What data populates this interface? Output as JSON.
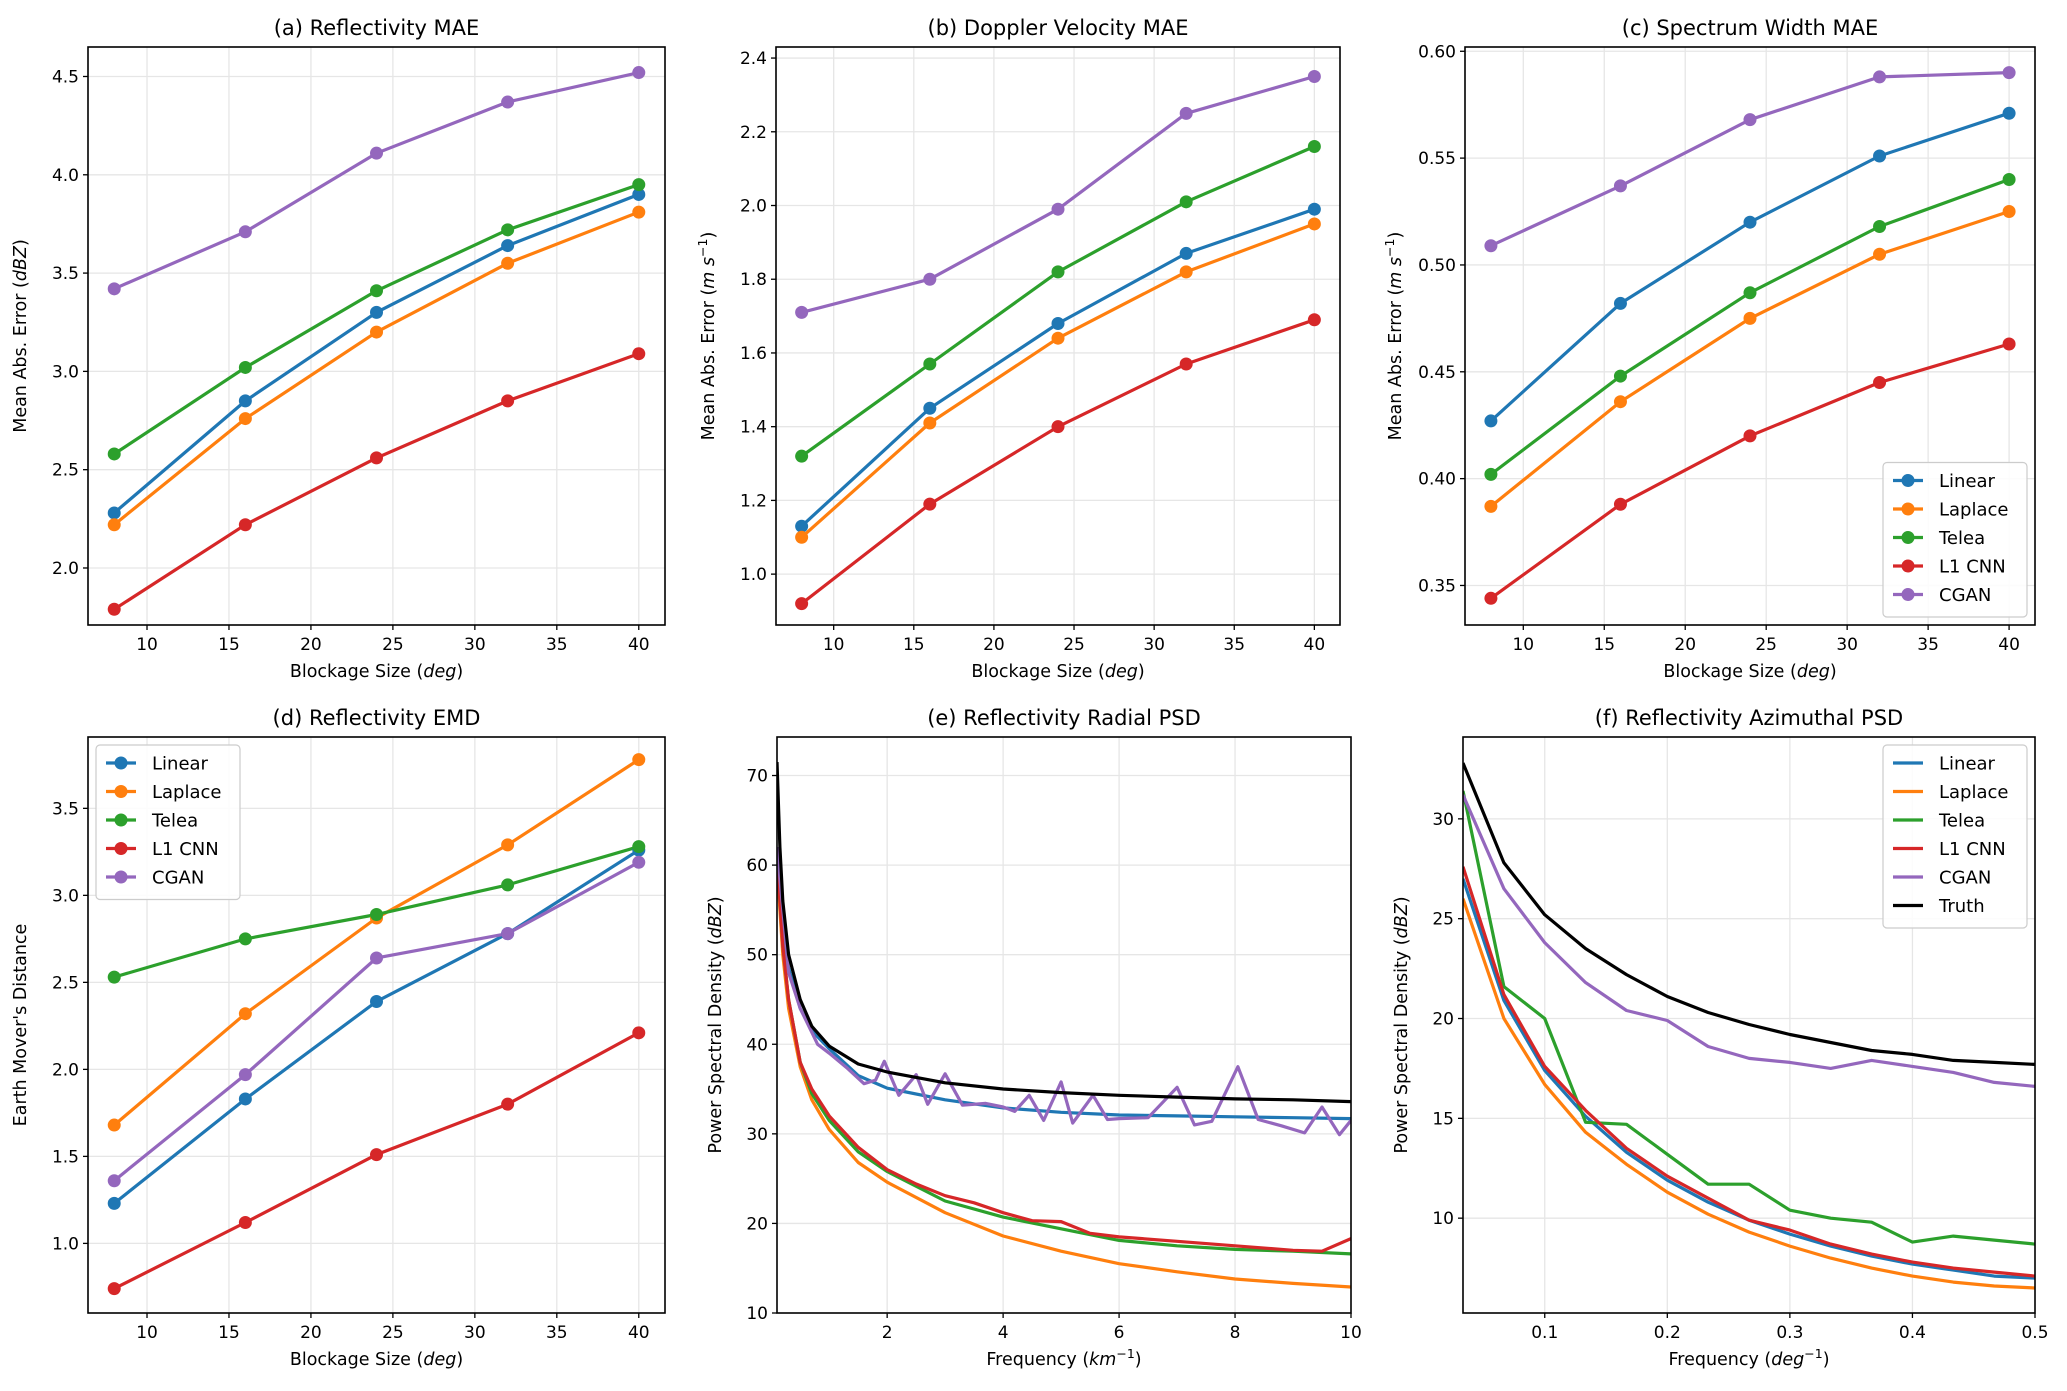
{
  "colors": {
    "Linear": "#1f77b4",
    "Laplace": "#ff7f0e",
    "Telea": "#2ca02c",
    "L1 CNN": "#d62728",
    "CGAN": "#9467bd",
    "Truth": "#000000"
  },
  "chart_data": [
    {
      "id": "a",
      "type": "line",
      "title": "(a) Reflectivity MAE",
      "xlabel": "Blockage Size (deg)",
      "xlabel_parts": [
        "Blockage Size (",
        "deg",
        ")"
      ],
      "ylabel": "Mean Abs. Error (dBZ)",
      "ylabel_parts": [
        "Mean Abs. Error (",
        "dBZ",
        ")"
      ],
      "x": [
        8,
        16,
        24,
        32,
        40
      ],
      "xlim": [
        6.4,
        41.6
      ],
      "ylim": [
        1.71,
        4.65
      ],
      "xticks": [
        10,
        15,
        20,
        25,
        30,
        35,
        40
      ],
      "yticks": [
        2.0,
        2.5,
        3.0,
        3.5,
        4.0,
        4.5
      ],
      "ytick_labels": [
        "2.0",
        "2.5",
        "3.0",
        "3.5",
        "4.0",
        "4.5"
      ],
      "markers": true,
      "grid": true,
      "legend": null,
      "series": [
        {
          "name": "Linear",
          "values": [
            2.28,
            2.85,
            3.3,
            3.64,
            3.9
          ]
        },
        {
          "name": "Laplace",
          "values": [
            2.22,
            2.76,
            3.2,
            3.55,
            3.81
          ]
        },
        {
          "name": "Telea",
          "values": [
            2.58,
            3.02,
            3.41,
            3.72,
            3.95
          ]
        },
        {
          "name": "L1 CNN",
          "values": [
            1.79,
            2.22,
            2.56,
            2.85,
            3.09
          ]
        },
        {
          "name": "CGAN",
          "values": [
            3.42,
            3.71,
            4.11,
            4.37,
            4.52
          ]
        }
      ]
    },
    {
      "id": "b",
      "type": "line",
      "title": "(b) Doppler Velocity MAE",
      "xlabel": "Blockage Size (deg)",
      "xlabel_parts": [
        "Blockage Size (",
        "deg",
        ")"
      ],
      "ylabel": "Mean Abs. Error (m s^-1)",
      "ylabel_parts": [
        "Mean Abs. Error (",
        "m s",
        "−1",
        ")"
      ],
      "x": [
        8,
        16,
        24,
        32,
        40
      ],
      "xlim": [
        6.4,
        41.6
      ],
      "ylim": [
        0.862,
        2.43
      ],
      "xticks": [
        10,
        15,
        20,
        25,
        30,
        35,
        40
      ],
      "yticks": [
        1.0,
        1.2,
        1.4,
        1.6,
        1.8,
        2.0,
        2.2,
        2.4
      ],
      "ytick_labels": [
        "1.0",
        "1.2",
        "1.4",
        "1.6",
        "1.8",
        "2.0",
        "2.2",
        "2.4"
      ],
      "markers": true,
      "grid": true,
      "legend": null,
      "series": [
        {
          "name": "Linear",
          "values": [
            1.13,
            1.45,
            1.68,
            1.87,
            1.99
          ]
        },
        {
          "name": "Laplace",
          "values": [
            1.1,
            1.41,
            1.64,
            1.82,
            1.95
          ]
        },
        {
          "name": "Telea",
          "values": [
            1.32,
            1.57,
            1.82,
            2.01,
            2.16
          ]
        },
        {
          "name": "L1 CNN",
          "values": [
            0.92,
            1.19,
            1.4,
            1.57,
            1.69
          ]
        },
        {
          "name": "CGAN",
          "values": [
            1.71,
            1.8,
            1.99,
            2.25,
            2.35
          ]
        }
      ]
    },
    {
      "id": "c",
      "type": "line",
      "title": "(c) Spectrum Width MAE",
      "xlabel": "Blockage Size (deg)",
      "xlabel_parts": [
        "Blockage Size (",
        "deg",
        ")"
      ],
      "ylabel": "Mean Abs. Error (m s^-1)",
      "ylabel_parts": [
        "Mean Abs. Error (",
        "m s",
        "−1",
        ")"
      ],
      "x": [
        8,
        16,
        24,
        32,
        40
      ],
      "xlim": [
        6.4,
        41.6
      ],
      "ylim": [
        0.3315,
        0.602
      ],
      "xticks": [
        10,
        15,
        20,
        25,
        30,
        35,
        40
      ],
      "yticks": [
        0.35,
        0.4,
        0.45,
        0.5,
        0.55,
        0.6
      ],
      "ytick_labels": [
        "0.35",
        "0.40",
        "0.45",
        "0.50",
        "0.55",
        "0.60"
      ],
      "markers": true,
      "grid": true,
      "legend": "lower-right",
      "series": [
        {
          "name": "Linear",
          "values": [
            0.427,
            0.482,
            0.52,
            0.551,
            0.571
          ]
        },
        {
          "name": "Laplace",
          "values": [
            0.387,
            0.436,
            0.475,
            0.505,
            0.525
          ]
        },
        {
          "name": "Telea",
          "values": [
            0.402,
            0.448,
            0.487,
            0.518,
            0.54
          ]
        },
        {
          "name": "L1 CNN",
          "values": [
            0.344,
            0.388,
            0.42,
            0.445,
            0.463
          ]
        },
        {
          "name": "CGAN",
          "values": [
            0.509,
            0.537,
            0.568,
            0.588,
            0.59
          ]
        }
      ]
    },
    {
      "id": "d",
      "type": "line",
      "title": "(d) Reflectivity EMD",
      "xlabel": "Blockage Size (deg)",
      "xlabel_parts": [
        "Blockage Size (",
        "deg",
        ")"
      ],
      "ylabel": "Earth Mover's Distance",
      "ylabel_parts": [
        "Earth Mover's Distance"
      ],
      "x": [
        8,
        16,
        24,
        32,
        40
      ],
      "xlim": [
        6.4,
        41.6
      ],
      "ylim": [
        0.6,
        3.91
      ],
      "xticks": [
        10,
        15,
        20,
        25,
        30,
        35,
        40
      ],
      "yticks": [
        1.0,
        1.5,
        2.0,
        2.5,
        3.0,
        3.5
      ],
      "ytick_labels": [
        "1.0",
        "1.5",
        "2.0",
        "2.5",
        "3.0",
        "3.5"
      ],
      "markers": true,
      "grid": true,
      "legend": "upper-left",
      "series": [
        {
          "name": "Linear",
          "values": [
            1.23,
            1.83,
            2.39,
            2.78,
            3.26
          ]
        },
        {
          "name": "Laplace",
          "values": [
            1.68,
            2.32,
            2.87,
            3.29,
            3.78
          ]
        },
        {
          "name": "Telea",
          "values": [
            2.53,
            2.75,
            2.89,
            3.06,
            3.28
          ]
        },
        {
          "name": "L1 CNN",
          "values": [
            0.74,
            1.12,
            1.51,
            1.8,
            2.21
          ]
        },
        {
          "name": "CGAN",
          "values": [
            1.36,
            1.97,
            2.64,
            2.78,
            3.19
          ]
        }
      ]
    },
    {
      "id": "e",
      "type": "line",
      "title": "(e) Reflectivity Radial PSD",
      "xlabel": "Frequency (km^-1)",
      "xlabel_parts": [
        "Frequency (",
        "km",
        "−1",
        ")"
      ],
      "ylabel": "Power Spectral Density (dBZ)",
      "ylabel_parts": [
        "Power Spectral Density (",
        "dBZ",
        ")"
      ],
      "xlim": [
        0.1,
        10
      ],
      "ylim": [
        10,
        74.3
      ],
      "xticks": [
        2,
        4,
        6,
        8,
        10
      ],
      "yticks": [
        10,
        20,
        30,
        40,
        50,
        60,
        70
      ],
      "ytick_labels": [
        "10",
        "20",
        "30",
        "40",
        "50",
        "60",
        "70"
      ],
      "markers": false,
      "grid": true,
      "legend": null,
      "series": [
        {
          "name": "Linear",
          "x": [
            0.1,
            0.2,
            0.3,
            0.5,
            0.7,
            1.0,
            1.5,
            2,
            3,
            4,
            5,
            6,
            7,
            8,
            9,
            10
          ],
          "values": [
            62,
            53,
            48.5,
            44,
            41.5,
            39.5,
            36.5,
            35.1,
            33.8,
            32.9,
            32.4,
            32.1,
            32.0,
            31.9,
            31.8,
            31.7
          ]
        },
        {
          "name": "Laplace",
          "x": [
            0.1,
            0.2,
            0.3,
            0.5,
            0.7,
            1.0,
            1.5,
            2,
            3,
            4,
            5,
            6,
            7,
            8,
            9,
            10
          ],
          "values": [
            60,
            50,
            44,
            37.5,
            33.8,
            30.5,
            26.8,
            24.6,
            21.2,
            18.6,
            16.9,
            15.5,
            14.6,
            13.8,
            13.3,
            12.9
          ]
        },
        {
          "name": "Telea",
          "x": [
            0.1,
            0.2,
            0.3,
            0.5,
            0.7,
            1.0,
            1.5,
            2,
            3,
            4,
            5,
            6,
            7,
            8,
            9,
            10
          ],
          "values": [
            61,
            51,
            45,
            38,
            34.5,
            31.5,
            28,
            25.8,
            22.5,
            20.7,
            19.4,
            18.1,
            17.5,
            17.1,
            16.9,
            16.6
          ]
        },
        {
          "name": "L1 CNN",
          "x": [
            0.1,
            0.2,
            0.3,
            0.5,
            0.7,
            1.0,
            1.5,
            2,
            2.5,
            3,
            3.5,
            4,
            4.5,
            5,
            5.5,
            6,
            7,
            8,
            9,
            9.5,
            10
          ],
          "values": [
            61,
            51,
            45,
            38,
            35,
            32,
            28.5,
            26,
            24.4,
            23.1,
            22.3,
            21.2,
            20.3,
            20.2,
            18.9,
            18.5,
            18.0,
            17.5,
            17.0,
            16.9,
            18.3
          ]
        },
        {
          "name": "CGAN",
          "x": [
            0.1,
            0.3,
            0.5,
            0.8,
            1.0,
            1.3,
            1.6,
            1.8,
            1.95,
            2.2,
            2.5,
            2.7,
            3.0,
            3.3,
            3.7,
            4.0,
            4.2,
            4.45,
            4.7,
            5.0,
            5.2,
            5.55,
            5.8,
            6.0,
            6.5,
            7.0,
            7.3,
            7.6,
            8.05,
            8.4,
            8.8,
            9.2,
            9.5,
            9.8,
            10
          ],
          "values": [
            62,
            48,
            44,
            40,
            39,
            37.4,
            35.6,
            36.0,
            38.1,
            34.3,
            36.6,
            33.3,
            36.7,
            33.2,
            33.4,
            33.0,
            32.5,
            34.3,
            31.5,
            35.8,
            31.2,
            34.3,
            31.6,
            31.7,
            31.8,
            35.2,
            31.0,
            31.4,
            37.5,
            31.6,
            30.9,
            30.1,
            33.0,
            29.9,
            31.5
          ]
        },
        {
          "name": "Truth",
          "x": [
            0.1,
            0.15,
            0.2,
            0.3,
            0.5,
            0.7,
            1.0,
            1.5,
            2,
            3,
            4,
            5,
            6,
            7,
            8,
            9,
            10
          ],
          "values": [
            71.5,
            62,
            56,
            50,
            45,
            42,
            39.8,
            37.8,
            36.9,
            35.7,
            35.0,
            34.6,
            34.3,
            34.1,
            33.9,
            33.8,
            33.6
          ]
        }
      ]
    },
    {
      "id": "f",
      "type": "line",
      "title": "(f) Reflectivity Azimuthal  PSD",
      "xlabel": "Frequency (deg^-1)",
      "xlabel_parts": [
        "Frequency (",
        "deg",
        "−1",
        ")"
      ],
      "ylabel": "Power Spectral Density (dBZ)",
      "ylabel_parts": [
        "Power Spectral Density (",
        "dBZ",
        ")"
      ],
      "xlim": [
        0.0333,
        0.5
      ],
      "ylim": [
        5.25,
        34.1
      ],
      "xticks": [
        0.1,
        0.2,
        0.3,
        0.4,
        0.5
      ],
      "xtick_labels": [
        "0.1",
        "0.2",
        "0.3",
        "0.4",
        "0.5"
      ],
      "yticks": [
        10,
        15,
        20,
        25,
        30
      ],
      "ytick_labels": [
        "10",
        "15",
        "20",
        "25",
        "30"
      ],
      "markers": false,
      "grid": true,
      "legend": "upper-right",
      "series": [
        {
          "name": "Linear",
          "x": [
            0.0333,
            0.0667,
            0.1,
            0.1333,
            0.1667,
            0.2,
            0.2333,
            0.2667,
            0.3,
            0.3333,
            0.3667,
            0.4,
            0.4333,
            0.4667,
            0.5
          ],
          "values": [
            27.0,
            20.9,
            17.4,
            15.1,
            13.3,
            11.9,
            10.8,
            9.9,
            9.2,
            8.6,
            8.1,
            7.7,
            7.4,
            7.1,
            7.0
          ]
        },
        {
          "name": "Laplace",
          "x": [
            0.0333,
            0.0667,
            0.1,
            0.1333,
            0.1667,
            0.2,
            0.2333,
            0.2667,
            0.3,
            0.3333,
            0.3667,
            0.4,
            0.4333,
            0.4667,
            0.5
          ],
          "values": [
            26.0,
            20.0,
            16.7,
            14.3,
            12.7,
            11.3,
            10.2,
            9.3,
            8.6,
            8.0,
            7.5,
            7.1,
            6.8,
            6.6,
            6.5
          ]
        },
        {
          "name": "Telea",
          "x": [
            0.0333,
            0.0667,
            0.1,
            0.1333,
            0.1667,
            0.2,
            0.2333,
            0.2667,
            0.3,
            0.3333,
            0.3667,
            0.4,
            0.4333,
            0.4667,
            0.5
          ],
          "values": [
            31.4,
            21.6,
            20.0,
            14.8,
            14.7,
            13.2,
            11.7,
            11.7,
            10.4,
            10.0,
            9.8,
            8.8,
            9.1,
            8.9,
            8.7
          ]
        },
        {
          "name": "L1 CNN",
          "x": [
            0.0333,
            0.0667,
            0.1,
            0.1333,
            0.1667,
            0.2,
            0.2333,
            0.2667,
            0.3,
            0.3333,
            0.3667,
            0.4,
            0.4333,
            0.4667,
            0.5
          ],
          "values": [
            27.6,
            21.2,
            17.6,
            15.4,
            13.5,
            12.1,
            11.0,
            9.9,
            9.4,
            8.7,
            8.2,
            7.8,
            7.5,
            7.3,
            7.1
          ]
        },
        {
          "name": "CGAN",
          "x": [
            0.0333,
            0.0667,
            0.1,
            0.1333,
            0.1667,
            0.2,
            0.2333,
            0.2667,
            0.3,
            0.3333,
            0.3667,
            0.4,
            0.4333,
            0.4667,
            0.5
          ],
          "values": [
            31.2,
            26.5,
            23.8,
            21.8,
            20.4,
            19.9,
            18.6,
            18.0,
            17.8,
            17.5,
            17.9,
            17.6,
            17.3,
            16.8,
            16.6
          ]
        },
        {
          "name": "Truth",
          "x": [
            0.0333,
            0.0667,
            0.1,
            0.1333,
            0.1667,
            0.2,
            0.2333,
            0.2667,
            0.3,
            0.3333,
            0.3667,
            0.4,
            0.4333,
            0.4667,
            0.5
          ],
          "values": [
            32.8,
            27.8,
            25.2,
            23.5,
            22.2,
            21.1,
            20.3,
            19.7,
            19.2,
            18.8,
            18.4,
            18.2,
            17.9,
            17.8,
            17.7
          ]
        }
      ]
    }
  ]
}
